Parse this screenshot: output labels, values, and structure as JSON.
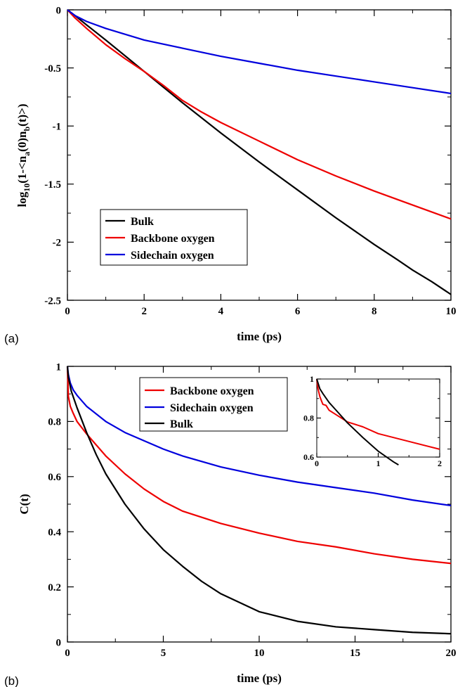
{
  "chart_data": [
    {
      "type": "line",
      "panel_label": "(a)",
      "xlabel": "time (ps)",
      "ylabel_parts": {
        "pre": "log",
        "sub1": "10",
        "mid1": "(1-<n",
        "sub2": "a",
        "mid2": "(0)n",
        "sub3": "b",
        "post": "(t)>)"
      },
      "xlim": [
        0,
        10
      ],
      "ylim": [
        -2.5,
        0
      ],
      "xticks": [
        0,
        2,
        4,
        6,
        8,
        10
      ],
      "xtick_labels": [
        "0",
        "2",
        "4",
        "6",
        "8",
        "10"
      ],
      "yticks": [
        0,
        -0.5,
        -1,
        -1.5,
        -2,
        -2.5
      ],
      "ytick_labels": [
        "0",
        "-0.5",
        "-1",
        "-1.5",
        "-2",
        "-2.5"
      ],
      "legend_position": "lower-left",
      "series": [
        {
          "name": "Bulk",
          "color": "#000000",
          "x": [
            0,
            0.2,
            0.5,
            1,
            1.5,
            2,
            2.5,
            3,
            3.5,
            4,
            5,
            6,
            7,
            8,
            8.6,
            9,
            9.5,
            10
          ],
          "y": [
            0,
            -0.05,
            -0.13,
            -0.26,
            -0.395,
            -0.53,
            -0.665,
            -0.8,
            -0.93,
            -1.06,
            -1.31,
            -1.55,
            -1.79,
            -2.02,
            -2.15,
            -2.24,
            -2.34,
            -2.45
          ]
        },
        {
          "name": "Backbone oxygen",
          "color": "#ee0000",
          "x": [
            0,
            0.2,
            0.5,
            1,
            1.5,
            2,
            2.5,
            3,
            3.5,
            4,
            5,
            6,
            7,
            8,
            9,
            10
          ],
          "y": [
            0,
            -0.07,
            -0.16,
            -0.3,
            -0.42,
            -0.53,
            -0.65,
            -0.78,
            -0.88,
            -0.97,
            -1.13,
            -1.29,
            -1.43,
            -1.56,
            -1.68,
            -1.8
          ]
        },
        {
          "name": "Sidechain oxygen",
          "color": "#0000dd",
          "x": [
            0,
            0.2,
            0.5,
            1,
            1.5,
            2,
            3,
            4,
            5,
            6,
            7,
            8,
            9,
            10
          ],
          "y": [
            0,
            -0.05,
            -0.1,
            -0.16,
            -0.21,
            -0.26,
            -0.33,
            -0.4,
            -0.46,
            -0.52,
            -0.57,
            -0.62,
            -0.67,
            -0.72
          ]
        }
      ]
    },
    {
      "type": "line",
      "panel_label": "(b)",
      "xlabel": "time (ps)",
      "ylabel": "C(t)",
      "xlim": [
        0,
        20
      ],
      "ylim": [
        0,
        1
      ],
      "xticks": [
        0,
        5,
        10,
        15,
        20
      ],
      "xtick_labels": [
        "0",
        "5",
        "10",
        "15",
        "20"
      ],
      "yticks": [
        0,
        0.2,
        0.4,
        0.6,
        0.8,
        1
      ],
      "ytick_labels": [
        "0",
        "0.2",
        "0.4",
        "0.6",
        "0.8",
        "1"
      ],
      "legend_position": "upper-center",
      "series": [
        {
          "name": "Backbone oxygen",
          "color": "#ee0000",
          "x": [
            0,
            0.05,
            0.15,
            0.3,
            0.5,
            1,
            1.5,
            2,
            3,
            4,
            5,
            6,
            8,
            10,
            12,
            14,
            16,
            18,
            20
          ],
          "y": [
            1,
            0.89,
            0.855,
            0.83,
            0.8,
            0.755,
            0.715,
            0.675,
            0.61,
            0.555,
            0.51,
            0.475,
            0.43,
            0.395,
            0.365,
            0.345,
            0.32,
            0.3,
            0.285
          ]
        },
        {
          "name": "Sidechain oxygen",
          "color": "#0000dd",
          "x": [
            0,
            0.05,
            0.15,
            0.3,
            0.5,
            1,
            2,
            3,
            4,
            5,
            6,
            8,
            10,
            12,
            14,
            16,
            18,
            20
          ],
          "y": [
            1,
            0.97,
            0.94,
            0.915,
            0.895,
            0.855,
            0.8,
            0.76,
            0.73,
            0.7,
            0.675,
            0.635,
            0.605,
            0.58,
            0.56,
            0.54,
            0.515,
            0.495
          ]
        },
        {
          "name": "Bulk",
          "color": "#000000",
          "x": [
            0,
            0.05,
            0.2,
            0.5,
            1,
            1.5,
            2,
            3,
            4,
            5,
            6,
            7,
            8,
            10,
            12,
            14,
            16,
            18,
            20
          ],
          "y": [
            1,
            0.96,
            0.91,
            0.85,
            0.76,
            0.68,
            0.61,
            0.5,
            0.41,
            0.335,
            0.275,
            0.22,
            0.175,
            0.11,
            0.075,
            0.055,
            0.045,
            0.035,
            0.03
          ]
        }
      ],
      "inset": {
        "xlim": [
          0,
          2
        ],
        "ylim": [
          0.6,
          1
        ],
        "xticks": [
          0,
          1,
          2
        ],
        "xtick_labels": [
          "0",
          "1",
          "2"
        ],
        "yticks": [
          0.6,
          0.8,
          1
        ],
        "ytick_labels": [
          "0.6",
          "0.8",
          "1"
        ],
        "series": [
          {
            "name": "Backbone oxygen",
            "color": "#ee0000",
            "x": [
              0,
              0.02,
              0.05,
              0.08,
              0.1,
              0.15,
              0.2,
              0.3,
              0.5,
              0.75,
              1,
              1.5,
              2
            ],
            "y": [
              1,
              0.95,
              0.91,
              0.885,
              0.87,
              0.865,
              0.84,
              0.82,
              0.78,
              0.755,
              0.72,
              0.68,
              0.64
            ]
          },
          {
            "name": "Bulk",
            "color": "#000000",
            "x": [
              0,
              0.05,
              0.1,
              0.2,
              0.3,
              0.5,
              0.75,
              1,
              1.25,
              1.33
            ],
            "y": [
              1,
              0.95,
              0.925,
              0.88,
              0.845,
              0.775,
              0.7,
              0.63,
              0.575,
              0.56
            ]
          }
        ]
      }
    }
  ]
}
